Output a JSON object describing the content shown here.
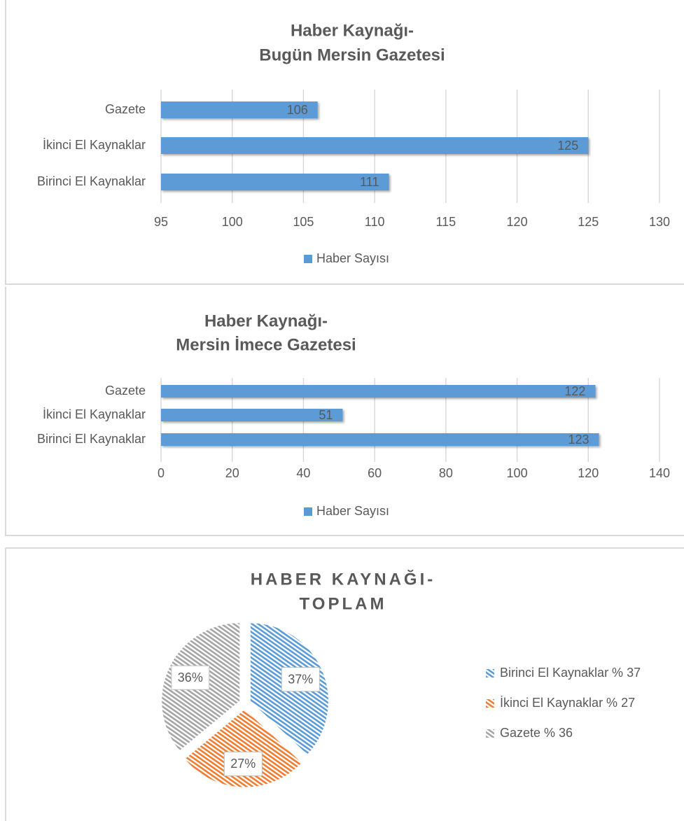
{
  "chart_data": [
    {
      "type": "barh",
      "title": [
        "Haber Kaynağı-",
        "Bugün Mersin Gazetesi"
      ],
      "categories": [
        "Gazete",
        "İkinci El Kaynaklar",
        "Birinci El Kaynaklar"
      ],
      "series": [
        {
          "name": "Haber Sayısı",
          "color": "#5b9bd5",
          "values": [
            106,
            125,
            111
          ]
        }
      ],
      "xlim": [
        95,
        130
      ],
      "xticks": [
        95,
        100,
        105,
        110,
        115,
        120,
        125,
        130
      ],
      "grid": true,
      "legend": "bottom"
    },
    {
      "type": "barh",
      "title": [
        "Haber Kaynağı-",
        "Mersin İmece Gazetesi"
      ],
      "categories": [
        "Gazete",
        "İkinci El Kaynaklar",
        "Birinci El Kaynaklar"
      ],
      "series": [
        {
          "name": "Haber Sayısı",
          "color": "#5b9bd5",
          "values": [
            122,
            51,
            123
          ]
        }
      ],
      "xlim": [
        0,
        140
      ],
      "xticks": [
        0,
        20,
        40,
        60,
        80,
        100,
        120,
        140
      ],
      "grid": true,
      "legend": "bottom"
    },
    {
      "type": "pie",
      "title": [
        "HABER KAYNAĞI-",
        "TOPLAM"
      ],
      "categories": [
        "Birinci El Kaynaklar % 37",
        "İkinci El Kaynaklar % 27",
        "Gazete % 36"
      ],
      "values": [
        37,
        27,
        36
      ],
      "value_labels": [
        "37%",
        "27%",
        "36%"
      ],
      "colors": [
        "#5b9bd5",
        "#ed7d31",
        "#a5a5a5"
      ],
      "legend": "right"
    }
  ]
}
